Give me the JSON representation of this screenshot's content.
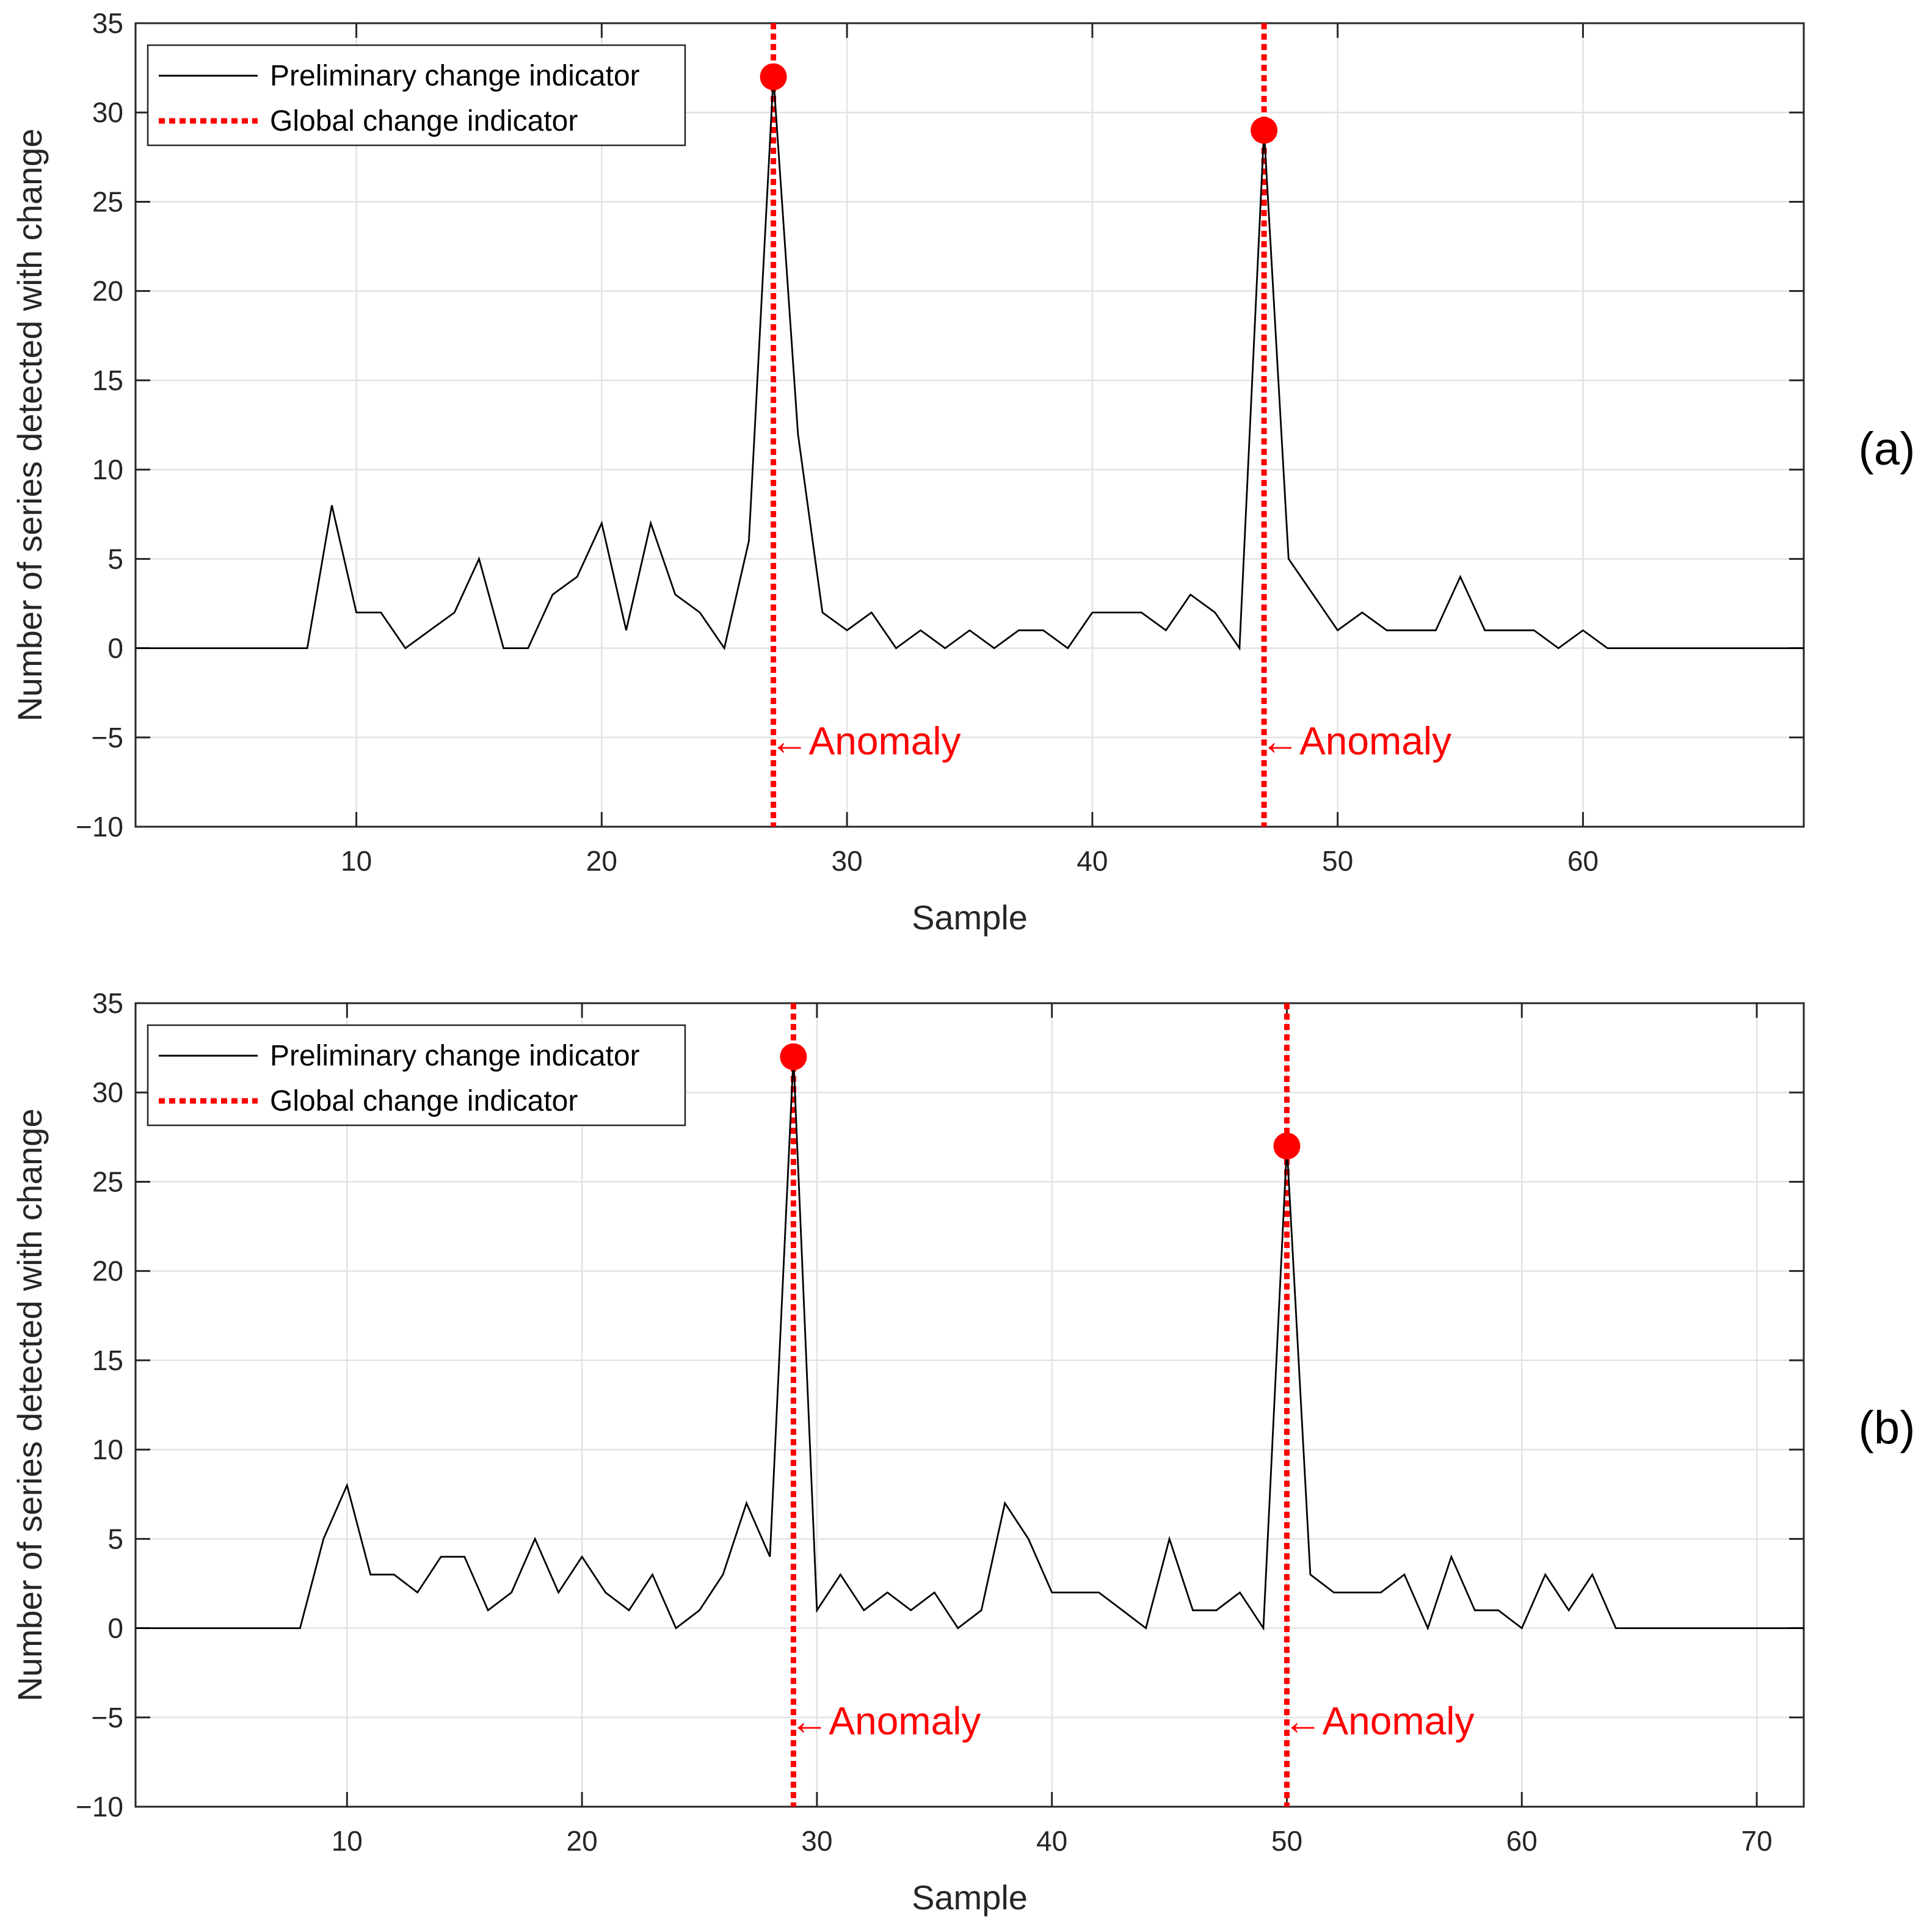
{
  "chart_data": [
    {
      "type": "line",
      "panel_label": "(a)",
      "xlabel": "Sample",
      "ylabel": "Number of series detected with change",
      "xlim": [
        1,
        69
      ],
      "ylim": [
        -10,
        35
      ],
      "xticks": [
        10,
        20,
        30,
        40,
        50,
        60
      ],
      "yticks": [
        -10,
        -5,
        0,
        5,
        10,
        15,
        20,
        25,
        30,
        35
      ],
      "grid": true,
      "legend": {
        "position": "top-left",
        "entries": [
          "Preliminary change indicator",
          "Global change indicator"
        ]
      },
      "series": [
        {
          "name": "Preliminary change indicator",
          "color": "#000000",
          "x": [
            1,
            2,
            3,
            4,
            5,
            6,
            7,
            8,
            9,
            10,
            11,
            12,
            13,
            14,
            15,
            16,
            17,
            18,
            19,
            20,
            21,
            22,
            23,
            24,
            25,
            26,
            27,
            28,
            29,
            30,
            31,
            32,
            33,
            34,
            35,
            36,
            37,
            38,
            39,
            40,
            41,
            42,
            43,
            44,
            45,
            46,
            47,
            48,
            49,
            50,
            51,
            52,
            53,
            54,
            55,
            56,
            57,
            58,
            59,
            60,
            61,
            62,
            63,
            64,
            65,
            66,
            67,
            68,
            69
          ],
          "y": [
            0,
            0,
            0,
            0,
            0,
            0,
            0,
            0,
            8,
            2,
            2,
            0,
            1,
            2,
            5,
            0,
            0,
            3,
            4,
            7,
            1,
            7,
            3,
            2,
            0,
            6,
            32,
            12,
            2,
            1,
            2,
            0,
            1,
            0,
            1,
            0,
            1,
            1,
            0,
            2,
            2,
            2,
            1,
            3,
            2,
            0,
            29,
            5,
            3,
            1,
            2,
            1,
            1,
            1,
            4,
            1,
            1,
            1,
            0,
            1,
            0,
            0,
            0,
            0,
            0,
            0,
            0,
            0,
            0
          ]
        }
      ],
      "global_change": {
        "name": "Global change indicator",
        "color": "#ff0000",
        "x": [
          27,
          47
        ],
        "peaks": [
          32,
          29
        ]
      },
      "annotations": [
        {
          "text": "←Anomaly",
          "x": 27,
          "y": -5.2
        },
        {
          "text": "←Anomaly",
          "x": 47,
          "y": -5.2
        }
      ]
    },
    {
      "type": "line",
      "panel_label": "(b)",
      "xlabel": "Sample",
      "ylabel": "Number of series detected with change",
      "xlim": [
        1,
        72
      ],
      "ylim": [
        -10,
        35
      ],
      "xticks": [
        10,
        20,
        30,
        40,
        50,
        60,
        70
      ],
      "yticks": [
        -10,
        -5,
        0,
        5,
        10,
        15,
        20,
        25,
        30,
        35
      ],
      "grid": true,
      "legend": {
        "position": "top-left",
        "entries": [
          "Preliminary change indicator",
          "Global change indicator"
        ]
      },
      "series": [
        {
          "name": "Preliminary change indicator",
          "color": "#000000",
          "x": [
            1,
            2,
            3,
            4,
            5,
            6,
            7,
            8,
            9,
            10,
            11,
            12,
            13,
            14,
            15,
            16,
            17,
            18,
            19,
            20,
            21,
            22,
            23,
            24,
            25,
            26,
            27,
            28,
            29,
            30,
            31,
            32,
            33,
            34,
            35,
            36,
            37,
            38,
            39,
            40,
            41,
            42,
            43,
            44,
            45,
            46,
            47,
            48,
            49,
            50,
            51,
            52,
            53,
            54,
            55,
            56,
            57,
            58,
            59,
            60,
            61,
            62,
            63,
            64,
            65,
            66,
            67,
            68,
            69,
            70,
            71,
            72
          ],
          "y": [
            0,
            0,
            0,
            0,
            0,
            0,
            0,
            0,
            5,
            8,
            3,
            3,
            2,
            4,
            4,
            1,
            2,
            5,
            2,
            4,
            2,
            1,
            3,
            0,
            1,
            3,
            7,
            4,
            32,
            1,
            3,
            1,
            2,
            1,
            2,
            0,
            1,
            7,
            5,
            2,
            2,
            2,
            1,
            0,
            5,
            1,
            1,
            2,
            0,
            27,
            3,
            2,
            2,
            2,
            3,
            0,
            4,
            1,
            1,
            0,
            3,
            1,
            3,
            0,
            0,
            0,
            0,
            0,
            0,
            0,
            0,
            0
          ]
        }
      ],
      "global_change": {
        "name": "Global change indicator",
        "color": "#ff0000",
        "x": [
          29,
          50
        ],
        "peaks": [
          32,
          27
        ]
      },
      "annotations": [
        {
          "text": "←Anomaly",
          "x": 29,
          "y": -5.2
        },
        {
          "text": "←Anomaly",
          "x": 50,
          "y": -5.2
        }
      ]
    }
  ]
}
